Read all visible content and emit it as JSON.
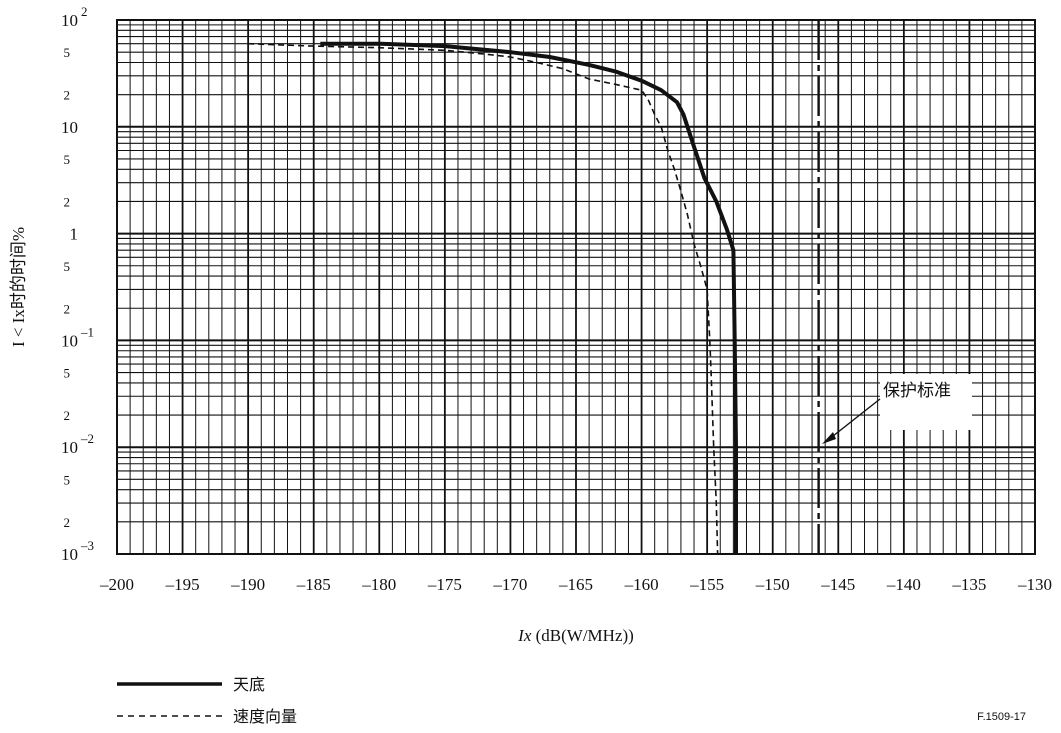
{
  "chart_data": {
    "type": "line",
    "xlabel": "Ix (dB(W/MHz))",
    "ylabel": "I < Ix时的时间%",
    "xlim": [
      -200,
      -130
    ],
    "ylim": [
      0.001,
      100
    ],
    "yscale": "log",
    "grid": true,
    "x_ticks": [
      "–200",
      "–195",
      "–190",
      "–185",
      "–180",
      "–175",
      "–170",
      "–165",
      "–160",
      "–155",
      "–150",
      "–145",
      "–140",
      "–135",
      "–130"
    ],
    "y_ticks": [
      {
        "value": 100,
        "base": "10",
        "exp": "2"
      },
      {
        "value": 10,
        "base": "10",
        "exp": ""
      },
      {
        "value": 1,
        "base": "1",
        "exp": ""
      },
      {
        "value": 0.1,
        "base": "10",
        "exp": "–1"
      },
      {
        "value": 0.01,
        "base": "10",
        "exp": "–2"
      },
      {
        "value": 0.001,
        "base": "10",
        "exp": "–3"
      }
    ],
    "y_minor_labels": [
      "5",
      "2"
    ],
    "series": [
      {
        "name": "天底",
        "style": "solid",
        "x": [
          -184.5,
          -180,
          -175,
          -170,
          -167,
          -164,
          -162,
          -160,
          -158.5,
          -157.3,
          -156.8,
          -156,
          -155.2,
          -154.3,
          -153.5,
          -153,
          -152.9,
          -152.8,
          -152.8
        ],
        "y": [
          60,
          60,
          57,
          50,
          45,
          38,
          33,
          27,
          22,
          17,
          13,
          6.5,
          3.3,
          2,
          1.1,
          0.7,
          0.1,
          0.01,
          0.001
        ]
      },
      {
        "name": "速度向量",
        "style": "dashed",
        "x": [
          -190,
          -185,
          -180,
          -175,
          -172,
          -170,
          -168,
          -166,
          -164,
          -162,
          -160,
          -159.5,
          -159,
          -158.5,
          -158,
          -157.5,
          -157,
          -156.5,
          -156,
          -155.5,
          -155,
          -154.8,
          -154.7,
          -154.5,
          -154.3,
          -154.2
        ],
        "y": [
          60,
          57,
          55,
          52,
          48,
          45,
          40,
          35,
          28,
          25,
          22,
          18,
          13,
          10,
          6,
          4,
          2.5,
          1.5,
          0.8,
          0.5,
          0.3,
          0.1,
          0.05,
          0.01,
          0.003,
          0.001
        ]
      }
    ],
    "reference_line": {
      "label": "保护标准",
      "x": -146.5,
      "style": "dash-dot"
    },
    "legend": [
      {
        "label": "天底",
        "style": "solid"
      },
      {
        "label": "速度向量",
        "style": "dashed"
      }
    ],
    "figure_id": "F.1509-17"
  }
}
